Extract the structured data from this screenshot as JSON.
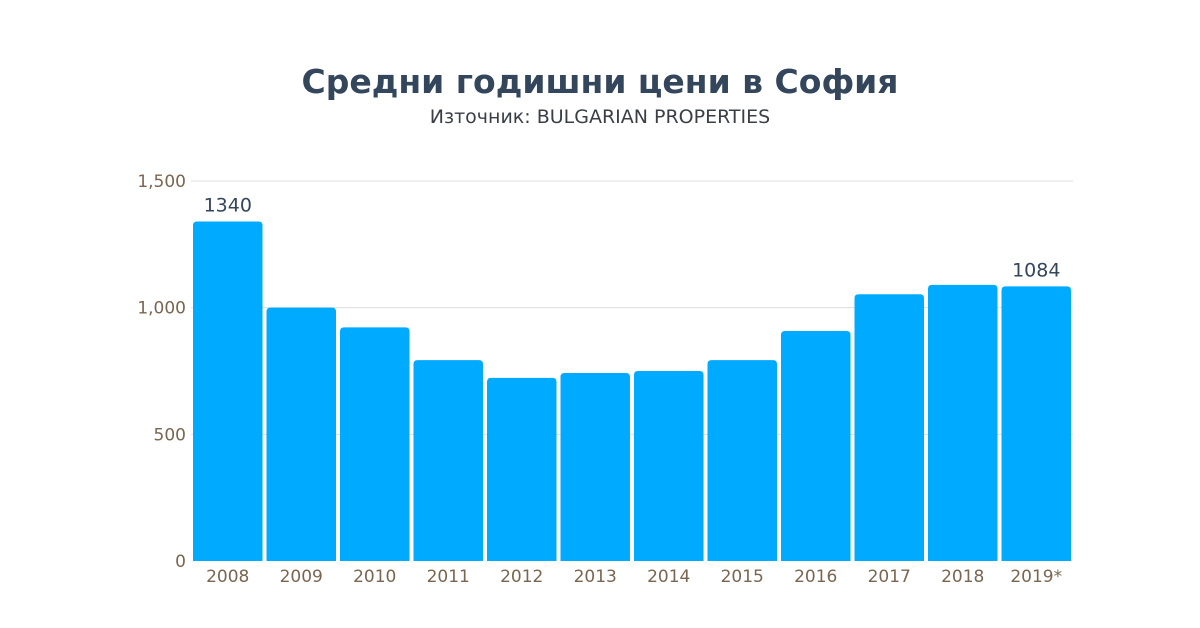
{
  "chart_data": {
    "type": "bar",
    "title": "Средни годишни цени в София",
    "subtitle": "Източник: BULGARIAN PROPERTIES",
    "xlabel": "",
    "ylabel": "",
    "categories": [
      "2008",
      "2009",
      "2010",
      "2011",
      "2012",
      "2013",
      "2014",
      "2015",
      "2016",
      "2017",
      "2018",
      "2019*"
    ],
    "values": [
      1340,
      1000,
      922,
      793,
      723,
      742,
      750,
      793,
      908,
      1053,
      1090,
      1084
    ],
    "data_labels": {
      "0": "1340",
      "11": "1084"
    },
    "ylim": [
      0,
      1500
    ],
    "yticks": [
      0,
      500,
      1000,
      1500
    ],
    "ytick_labels": [
      "0",
      "500",
      "1,000",
      "1,500"
    ],
    "grid": true,
    "legend": "none",
    "colors": {
      "bar": "#00aaff",
      "tick": "#7a6650",
      "grid": "#dddddd",
      "label": "#34465c"
    }
  }
}
